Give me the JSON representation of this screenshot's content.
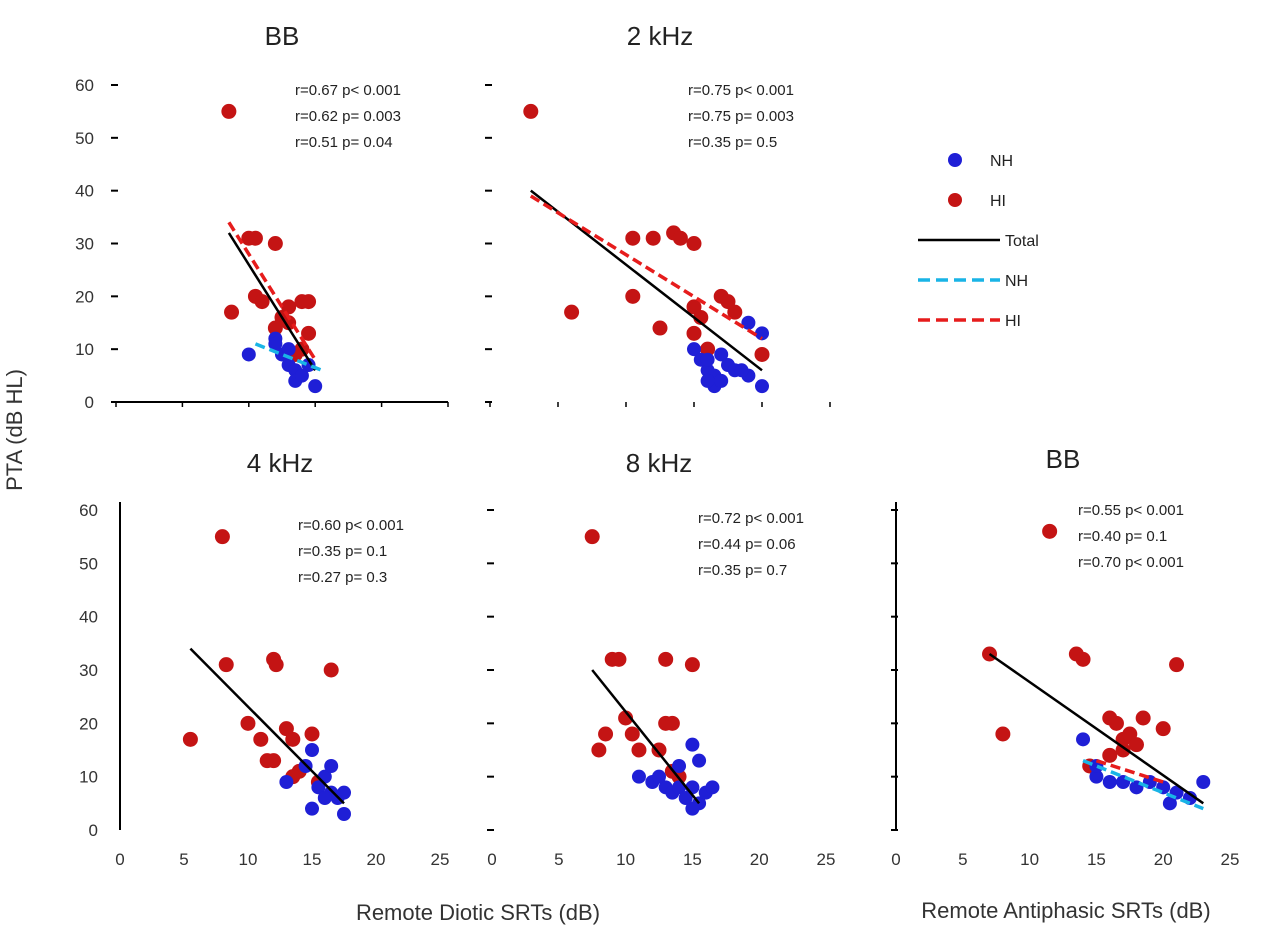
{
  "colors": {
    "nh": "#1f1fd6",
    "hi": "#c41414",
    "total": "#000000",
    "nh_line": "#19b4e6",
    "hi_line": "#e61c1c",
    "axis": "#000000"
  },
  "labels": {
    "ylabel": "PTA (dB HL)",
    "xlabel_diotic": "Remote Diotic SRTs (dB)",
    "xlabel_antiphasic": "Remote Antiphasic SRTs (dB)"
  },
  "legend": [
    {
      "label": "NH",
      "kind": "marker",
      "color": "#1f1fd6"
    },
    {
      "label": "HI",
      "kind": "marker",
      "color": "#c41414"
    },
    {
      "label": "Total",
      "kind": "line",
      "color": "#000000"
    },
    {
      "label": "NH",
      "kind": "dash",
      "color": "#19b4e6"
    },
    {
      "label": "HI",
      "kind": "dash",
      "color": "#e61c1c"
    }
  ],
  "chart_data": [
    {
      "type": "scatter",
      "title": "BB",
      "xlim": [
        0,
        25
      ],
      "ylim": [
        0,
        60
      ],
      "xticks": [],
      "yticks": [
        "0",
        "10",
        "20",
        "30",
        "40",
        "50",
        "60"
      ],
      "stats": [
        {
          "text": "r=0.67 p< 0.001",
          "color": "#000000"
        },
        {
          "text": "r=0.62 p= 0.003",
          "color": "#c41414"
        },
        {
          "text": "r=0.51 p= 0.04",
          "color": "#1f1fd6"
        }
      ],
      "hi_points": [
        [
          8.5,
          55
        ],
        [
          8.7,
          17
        ],
        [
          10,
          31
        ],
        [
          10.5,
          31
        ],
        [
          12,
          30
        ],
        [
          10.5,
          20
        ],
        [
          11,
          19
        ],
        [
          12.5,
          16
        ],
        [
          12,
          14
        ],
        [
          13,
          18
        ],
        [
          14,
          19
        ],
        [
          14.5,
          19
        ],
        [
          13,
          15
        ],
        [
          14.5,
          13
        ],
        [
          14,
          10
        ],
        [
          13.5,
          9
        ]
      ],
      "nh_points": [
        [
          10,
          9
        ],
        [
          12,
          12
        ],
        [
          12.5,
          9
        ],
        [
          13,
          7
        ],
        [
          13.5,
          6
        ],
        [
          14.5,
          7
        ],
        [
          13.5,
          4
        ],
        [
          15,
          3
        ],
        [
          14,
          5
        ],
        [
          12,
          11
        ],
        [
          13,
          10
        ]
      ],
      "fits": [
        {
          "series": "total",
          "x": [
            8.5,
            15
          ],
          "y": [
            32,
            6
          ]
        },
        {
          "series": "hi",
          "x": [
            8.5,
            15
          ],
          "y": [
            34,
            8
          ]
        },
        {
          "series": "nh",
          "x": [
            10.5,
            15.5
          ],
          "y": [
            11,
            6
          ]
        }
      ]
    },
    {
      "type": "scatter",
      "title": "2 kHz",
      "xlim": [
        0,
        25
      ],
      "ylim": [
        0,
        60
      ],
      "xticks": [],
      "yticks": [],
      "stats": [
        {
          "text": "r=0.75 p< 0.001",
          "color": "#000000"
        },
        {
          "text": "r=0.75 p= 0.003",
          "color": "#c41414"
        },
        {
          "text": "r=0.35 p= 0.5",
          "color": "#1f1fd6"
        }
      ],
      "hi_points": [
        [
          3,
          55
        ],
        [
          6,
          17
        ],
        [
          10.5,
          31
        ],
        [
          10.5,
          20
        ],
        [
          12,
          31
        ],
        [
          12.5,
          14
        ],
        [
          13.5,
          32
        ],
        [
          14,
          31
        ],
        [
          15,
          30
        ],
        [
          15,
          18
        ],
        [
          15.5,
          16
        ],
        [
          17,
          20
        ],
        [
          17.5,
          19
        ],
        [
          15,
          13
        ],
        [
          16,
          10
        ],
        [
          20,
          9
        ],
        [
          18,
          17
        ]
      ],
      "nh_points": [
        [
          15,
          10
        ],
        [
          15.5,
          8
        ],
        [
          16,
          6
        ],
        [
          16.5,
          5
        ],
        [
          16,
          8
        ],
        [
          17,
          9
        ],
        [
          17.5,
          7
        ],
        [
          16.5,
          3
        ],
        [
          17,
          4
        ],
        [
          18,
          6
        ],
        [
          19,
          15
        ],
        [
          19,
          5
        ],
        [
          20,
          13
        ],
        [
          20,
          3
        ],
        [
          16,
          4
        ],
        [
          18.5,
          6
        ]
      ],
      "fits": [
        {
          "series": "total",
          "x": [
            3,
            20
          ],
          "y": [
            40,
            6
          ]
        },
        {
          "series": "hi",
          "x": [
            3,
            20
          ],
          "y": [
            39,
            12
          ]
        }
      ]
    },
    {
      "type": "scatter",
      "title": "4 kHz",
      "xlim": [
        0,
        25
      ],
      "ylim": [
        0,
        60
      ],
      "xticks": [
        "0",
        "5",
        "10",
        "15",
        "20",
        "25"
      ],
      "yticks": [
        "0",
        "10",
        "20",
        "30",
        "40",
        "50",
        "60"
      ],
      "stats": [
        {
          "text": "r=0.60 p< 0.001",
          "color": "#000000"
        },
        {
          "text": "r=0.35 p= 0.1",
          "color": "#c41414"
        },
        {
          "text": "r=0.27 p= 0.3",
          "color": "#1f1fd6"
        }
      ],
      "hi_points": [
        [
          8,
          55
        ],
        [
          5.5,
          17
        ],
        [
          8.3,
          31
        ],
        [
          12,
          32
        ],
        [
          12.2,
          31
        ],
        [
          16.5,
          30
        ],
        [
          10,
          20
        ],
        [
          11,
          17
        ],
        [
          11.5,
          13
        ],
        [
          12,
          13
        ],
        [
          13,
          19
        ],
        [
          13.5,
          17
        ],
        [
          15,
          18
        ],
        [
          14,
          11
        ],
        [
          13.5,
          10
        ],
        [
          15.5,
          9
        ]
      ],
      "nh_points": [
        [
          13,
          9
        ],
        [
          14.5,
          12
        ],
        [
          15,
          15
        ],
        [
          15.5,
          8
        ],
        [
          16,
          10
        ],
        [
          16.5,
          12
        ],
        [
          16.5,
          7
        ],
        [
          17,
          6
        ],
        [
          17.5,
          7
        ],
        [
          15,
          4
        ],
        [
          17.5,
          3
        ],
        [
          16,
          6
        ]
      ],
      "fits": [
        {
          "series": "total",
          "x": [
            5.5,
            17.5
          ],
          "y": [
            34,
            5
          ]
        }
      ]
    },
    {
      "type": "scatter",
      "title": "8 kHz",
      "xlim": [
        0,
        25
      ],
      "ylim": [
        0,
        60
      ],
      "xticks": [
        "0",
        "5",
        "10",
        "15",
        "20",
        "25"
      ],
      "yticks": [],
      "stats": [
        {
          "text": "r=0.72 p< 0.001",
          "color": "#000000"
        },
        {
          "text": "r=0.44 p= 0.06",
          "color": "#c41414"
        },
        {
          "text": "r=0.35 p= 0.7",
          "color": "#1f1fd6"
        }
      ],
      "hi_points": [
        [
          7.5,
          55
        ],
        [
          8,
          15
        ],
        [
          8.5,
          18
        ],
        [
          9,
          32
        ],
        [
          9.5,
          32
        ],
        [
          10,
          21
        ],
        [
          10.5,
          18
        ],
        [
          11,
          15
        ],
        [
          12.5,
          15
        ],
        [
          13,
          20
        ],
        [
          13.5,
          20
        ],
        [
          13,
          32
        ],
        [
          15,
          31
        ],
        [
          13.5,
          11
        ],
        [
          14,
          10
        ]
      ],
      "nh_points": [
        [
          11,
          10
        ],
        [
          12,
          9
        ],
        [
          13,
          8
        ],
        [
          13.5,
          7
        ],
        [
          14,
          8
        ],
        [
          14.5,
          6
        ],
        [
          15,
          8
        ],
        [
          15,
          16
        ],
        [
          15.5,
          13
        ],
        [
          15.5,
          5
        ],
        [
          16,
          7
        ],
        [
          16.5,
          8
        ],
        [
          15,
          4
        ],
        [
          14,
          12
        ],
        [
          12.5,
          10
        ]
      ],
      "fits": [
        {
          "series": "total",
          "x": [
            7.5,
            15.5
          ],
          "y": [
            30,
            5
          ]
        }
      ]
    },
    {
      "type": "scatter",
      "title": "BB",
      "xlim": [
        0,
        25
      ],
      "ylim": [
        0,
        60
      ],
      "xticks": [
        "0",
        "5",
        "10",
        "15",
        "20",
        "25"
      ],
      "yticks": [],
      "stats": [
        {
          "text": "r=0.55 p< 0.001",
          "color": "#000000"
        },
        {
          "text": "r=0.40 p= 0.1",
          "color": "#c41414"
        },
        {
          "text": "r=0.70 p< 0.001",
          "color": "#1f1fd6"
        }
      ],
      "hi_points": [
        [
          11.5,
          56
        ],
        [
          7,
          33
        ],
        [
          8,
          18
        ],
        [
          13.5,
          33
        ],
        [
          14,
          32
        ],
        [
          16,
          21
        ],
        [
          16.5,
          20
        ],
        [
          17,
          17
        ],
        [
          17.5,
          18
        ],
        [
          18,
          16
        ],
        [
          18.5,
          21
        ],
        [
          20,
          19
        ],
        [
          21,
          31
        ],
        [
          16,
          14
        ],
        [
          17,
          15
        ],
        [
          14.5,
          12
        ]
      ],
      "nh_points": [
        [
          14,
          17
        ],
        [
          15,
          10
        ],
        [
          16,
          9
        ],
        [
          17,
          9
        ],
        [
          18,
          8
        ],
        [
          19,
          9
        ],
        [
          20,
          8
        ],
        [
          20.5,
          5
        ],
        [
          21,
          7
        ],
        [
          22,
          6
        ],
        [
          23,
          9
        ],
        [
          15,
          12
        ]
      ],
      "fits": [
        {
          "series": "total",
          "x": [
            7,
            23
          ],
          "y": [
            33,
            5
          ]
        },
        {
          "series": "nh",
          "x": [
            14,
            23
          ],
          "y": [
            13,
            4
          ]
        },
        {
          "series": "hi",
          "x": [
            15,
            20
          ],
          "y": [
            13,
            9
          ]
        }
      ]
    }
  ]
}
